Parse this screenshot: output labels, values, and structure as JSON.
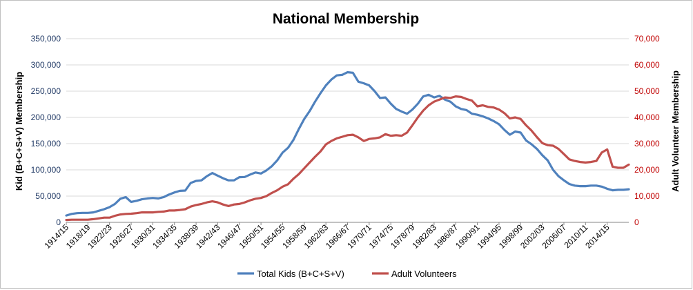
{
  "chart_data": {
    "type": "line",
    "title": "National Membership",
    "ylabel_left": "Kid (B+C+S+V) Membership",
    "ylabel_right": "Adult Volunteer Membership",
    "ylim_left": [
      0,
      350000
    ],
    "ylim_right": [
      0,
      70000
    ],
    "yticks_left": [
      "0",
      "50,000",
      "100,000",
      "150,000",
      "200,000",
      "250,000",
      "300,000",
      "350,000"
    ],
    "yticks_right": [
      "0",
      "10,000",
      "20,000",
      "30,000",
      "40,000",
      "50,000",
      "60,000",
      "70,000"
    ],
    "xtick_labels": [
      "1914/15",
      "1918/19",
      "1922/23",
      "1926/27",
      "1930/31",
      "1934/35",
      "1938/39",
      "1942/43",
      "1946/47",
      "1950/51",
      "1954/55",
      "1958/59",
      "1962/63",
      "1966/67",
      "1970/71",
      "1974/75",
      "1978/79",
      "1982/83",
      "1986/87",
      "1990/91",
      "1994/95",
      "1998/99",
      "2002/03",
      "2006/07",
      "2010/11",
      "2014/15"
    ],
    "x_start": 1914,
    "x_end": 2018,
    "legend_position": "bottom",
    "series": [
      {
        "name": "Total Kids (B+C+S+V)",
        "axis": "left",
        "color": "#4f81bd",
        "points": [
          [
            1914,
            13000
          ],
          [
            1915,
            16000
          ],
          [
            1916,
            17500
          ],
          [
            1917,
            18000
          ],
          [
            1918,
            18000
          ],
          [
            1919,
            19000
          ],
          [
            1920,
            22000
          ],
          [
            1921,
            25000
          ],
          [
            1922,
            29000
          ],
          [
            1923,
            35000
          ],
          [
            1924,
            45000
          ],
          [
            1925,
            48000
          ],
          [
            1926,
            39000
          ],
          [
            1927,
            41000
          ],
          [
            1928,
            44000
          ],
          [
            1929,
            45500
          ],
          [
            1930,
            46500
          ],
          [
            1931,
            45500
          ],
          [
            1932,
            48000
          ],
          [
            1933,
            53000
          ],
          [
            1934,
            57000
          ],
          [
            1935,
            60000
          ],
          [
            1936,
            60500
          ],
          [
            1937,
            75000
          ],
          [
            1938,
            79000
          ],
          [
            1939,
            80000
          ],
          [
            1940,
            88000
          ],
          [
            1941,
            94000
          ],
          [
            1942,
            89000
          ],
          [
            1943,
            84000
          ],
          [
            1944,
            80000
          ],
          [
            1945,
            80000
          ],
          [
            1946,
            86000
          ],
          [
            1947,
            86500
          ],
          [
            1948,
            91000
          ],
          [
            1949,
            95000
          ],
          [
            1950,
            93000
          ],
          [
            1951,
            99000
          ],
          [
            1952,
            107000
          ],
          [
            1953,
            118000
          ],
          [
            1954,
            133000
          ],
          [
            1955,
            142000
          ],
          [
            1956,
            157000
          ],
          [
            1957,
            178000
          ],
          [
            1958,
            197000
          ],
          [
            1959,
            212000
          ],
          [
            1960,
            230000
          ],
          [
            1961,
            246000
          ],
          [
            1962,
            261000
          ],
          [
            1963,
            272000
          ],
          [
            1964,
            280000
          ],
          [
            1965,
            281000
          ],
          [
            1966,
            286000
          ],
          [
            1967,
            285000
          ],
          [
            1968,
            268000
          ],
          [
            1969,
            265000
          ],
          [
            1970,
            261000
          ],
          [
            1971,
            250000
          ],
          [
            1972,
            237000
          ],
          [
            1973,
            238000
          ],
          [
            1974,
            226000
          ],
          [
            1975,
            216000
          ],
          [
            1976,
            211000
          ],
          [
            1977,
            207000
          ],
          [
            1978,
            215000
          ],
          [
            1979,
            226000
          ],
          [
            1980,
            240000
          ],
          [
            1981,
            243000
          ],
          [
            1982,
            238000
          ],
          [
            1983,
            241000
          ],
          [
            1984,
            234000
          ],
          [
            1985,
            230000
          ],
          [
            1986,
            221000
          ],
          [
            1987,
            216000
          ],
          [
            1988,
            214000
          ],
          [
            1989,
            207000
          ],
          [
            1990,
            205000
          ],
          [
            1991,
            202000
          ],
          [
            1992,
            198000
          ],
          [
            1993,
            193000
          ],
          [
            1994,
            187000
          ],
          [
            1995,
            176000
          ],
          [
            1996,
            167000
          ],
          [
            1997,
            173000
          ],
          [
            1998,
            171000
          ],
          [
            1999,
            156000
          ],
          [
            2000,
            149000
          ],
          [
            2001,
            140000
          ],
          [
            2002,
            128000
          ],
          [
            2003,
            118000
          ],
          [
            2004,
            100000
          ],
          [
            2005,
            88000
          ],
          [
            2006,
            80000
          ],
          [
            2007,
            73000
          ],
          [
            2008,
            70000
          ],
          [
            2009,
            69000
          ],
          [
            2010,
            69000
          ],
          [
            2011,
            70000
          ],
          [
            2012,
            70000
          ],
          [
            2013,
            68000
          ],
          [
            2014,
            64000
          ],
          [
            2015,
            61000
          ],
          [
            2016,
            62000
          ],
          [
            2017,
            62000
          ],
          [
            2018,
            63000
          ]
        ]
      },
      {
        "name": "Adult Volunteers",
        "axis": "right",
        "color": "#c0504d",
        "points": [
          [
            1914,
            900
          ],
          [
            1915,
            1000
          ],
          [
            1916,
            1000
          ],
          [
            1917,
            1000
          ],
          [
            1918,
            1000
          ],
          [
            1919,
            1200
          ],
          [
            1920,
            1500
          ],
          [
            1921,
            1800
          ],
          [
            1922,
            1800
          ],
          [
            1923,
            2500
          ],
          [
            1924,
            3000
          ],
          [
            1925,
            3200
          ],
          [
            1926,
            3300
          ],
          [
            1927,
            3500
          ],
          [
            1928,
            3800
          ],
          [
            1929,
            3800
          ],
          [
            1930,
            3800
          ],
          [
            1931,
            4000
          ],
          [
            1932,
            4100
          ],
          [
            1933,
            4500
          ],
          [
            1934,
            4500
          ],
          [
            1935,
            4700
          ],
          [
            1936,
            5000
          ],
          [
            1937,
            6000
          ],
          [
            1938,
            6600
          ],
          [
            1939,
            7000
          ],
          [
            1940,
            7600
          ],
          [
            1941,
            8000
          ],
          [
            1942,
            7600
          ],
          [
            1943,
            6800
          ],
          [
            1944,
            6200
          ],
          [
            1945,
            6800
          ],
          [
            1946,
            7000
          ],
          [
            1947,
            7600
          ],
          [
            1948,
            8400
          ],
          [
            1949,
            9000
          ],
          [
            1950,
            9300
          ],
          [
            1951,
            10000
          ],
          [
            1952,
            11200
          ],
          [
            1953,
            12200
          ],
          [
            1954,
            13600
          ],
          [
            1955,
            14500
          ],
          [
            1956,
            16600
          ],
          [
            1957,
            18400
          ],
          [
            1958,
            20600
          ],
          [
            1959,
            22800
          ],
          [
            1960,
            25000
          ],
          [
            1961,
            27000
          ],
          [
            1962,
            29700
          ],
          [
            1963,
            31000
          ],
          [
            1964,
            32000
          ],
          [
            1965,
            32600
          ],
          [
            1966,
            33200
          ],
          [
            1967,
            33400
          ],
          [
            1968,
            32400
          ],
          [
            1969,
            31000
          ],
          [
            1970,
            31800
          ],
          [
            1971,
            32000
          ],
          [
            1972,
            32400
          ],
          [
            1973,
            33600
          ],
          [
            1974,
            33000
          ],
          [
            1975,
            33200
          ],
          [
            1976,
            33000
          ],
          [
            1977,
            34200
          ],
          [
            1978,
            37000
          ],
          [
            1979,
            40000
          ],
          [
            1980,
            42600
          ],
          [
            1981,
            44600
          ],
          [
            1982,
            46000
          ],
          [
            1983,
            46800
          ],
          [
            1984,
            47600
          ],
          [
            1985,
            47400
          ],
          [
            1986,
            48000
          ],
          [
            1987,
            47800
          ],
          [
            1988,
            47000
          ],
          [
            1989,
            46400
          ],
          [
            1990,
            44200
          ],
          [
            1991,
            44600
          ],
          [
            1992,
            44000
          ],
          [
            1993,
            43800
          ],
          [
            1994,
            43000
          ],
          [
            1995,
            41600
          ],
          [
            1996,
            39600
          ],
          [
            1997,
            40000
          ],
          [
            1998,
            39400
          ],
          [
            1999,
            37000
          ],
          [
            2000,
            35000
          ],
          [
            2001,
            32500
          ],
          [
            2002,
            30200
          ],
          [
            2003,
            29400
          ],
          [
            2004,
            29200
          ],
          [
            2005,
            28000
          ],
          [
            2006,
            26000
          ],
          [
            2007,
            24000
          ],
          [
            2008,
            23400
          ],
          [
            2009,
            23000
          ],
          [
            2010,
            22800
          ],
          [
            2011,
            23000
          ],
          [
            2012,
            23400
          ],
          [
            2013,
            26600
          ],
          [
            2014,
            27800
          ],
          [
            2015,
            21200
          ],
          [
            2016,
            20800
          ],
          [
            2017,
            20800
          ],
          [
            2018,
            22000
          ]
        ]
      }
    ]
  }
}
